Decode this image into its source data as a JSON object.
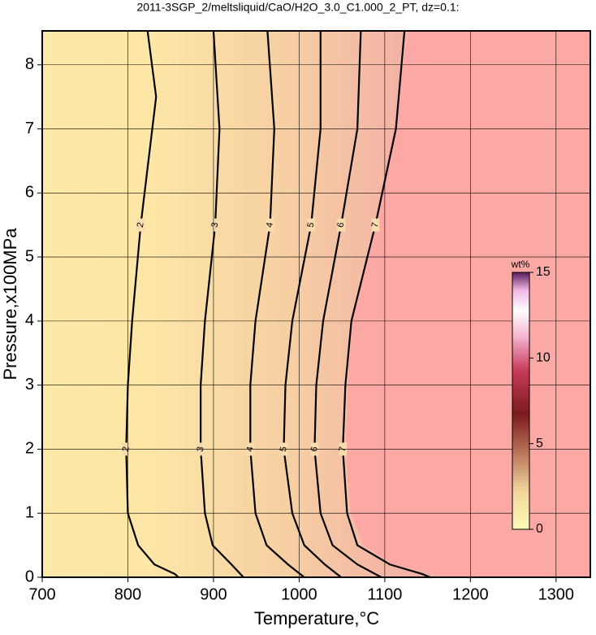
{
  "chart_data": {
    "type": "contour",
    "title": "2011-3SGP_2/meltsliquid/CaO/H2O_3.0_C1.000_2_PT, dz=0.1:",
    "x_label": "Temperature,°C",
    "y_label": "Pressure,x100MPa",
    "xlim": [
      700,
      1340
    ],
    "ylim": [
      0,
      8.53
    ],
    "xticks": [
      700,
      800,
      900,
      1000,
      1100,
      1200,
      1300
    ],
    "yticks": [
      0,
      1,
      2,
      3,
      4,
      5,
      6,
      7,
      8
    ],
    "grid": true,
    "line_color": "#000000",
    "region": {
      "color": "#fca9a6",
      "x": [
        1128,
        1110,
        1088,
        1062,
        1058,
        1057,
        1054,
        1060,
        1075,
        1110,
        1160,
        1165
      ],
      "y": [
        8.53,
        7,
        5.5,
        4,
        3.4,
        3,
        2,
        1,
        0.5,
        0.2,
        0.05,
        0
      ]
    },
    "contours": [
      {
        "level": 2,
        "y": [
          8.53,
          7.5,
          5.5,
          4,
          3,
          2,
          1,
          0.5,
          0.2,
          0.05,
          0
        ],
        "x": [
          823,
          833,
          815,
          805,
          800,
          798,
          800,
          812,
          831,
          855,
          859
        ]
      },
      {
        "level": 3,
        "y": [
          8.53,
          7,
          5.5,
          4,
          3,
          2,
          1,
          0.5,
          0.2,
          0
        ],
        "x": [
          900,
          907,
          902,
          890,
          885,
          885,
          890,
          899,
          921,
          935
        ]
      },
      {
        "level": 4,
        "y": [
          8.53,
          7,
          5.5,
          4,
          3,
          2,
          1,
          0.5,
          0.2,
          0
        ],
        "x": [
          963,
          971,
          966,
          949,
          943,
          943,
          949,
          962,
          987,
          1006
        ]
      },
      {
        "level": 5,
        "y": [
          8.53,
          7,
          5.5,
          4,
          3,
          2,
          1,
          0.5,
          0.2,
          0
        ],
        "x": [
          1025,
          1025,
          1014,
          992,
          984,
          982,
          992,
          1006,
          1030,
          1049
        ]
      },
      {
        "level": 6,
        "y": [
          8.53,
          7,
          5.5,
          4,
          3,
          2,
          1,
          0.5,
          0.2,
          0
        ],
        "x": [
          1072,
          1068,
          1049,
          1028,
          1020,
          1018,
          1025,
          1039,
          1068,
          1096
        ]
      },
      {
        "level": 7,
        "y": [
          8.53,
          7,
          5.5,
          4,
          3,
          2,
          1,
          0.5,
          0.2,
          0.05,
          0
        ],
        "x": [
          1123,
          1113,
          1089,
          1061,
          1054,
          1051,
          1056,
          1068,
          1106,
          1144,
          1153
        ]
      }
    ],
    "colorbar": {
      "label": "wt%",
      "lim": [
        0,
        15
      ],
      "ticks": [
        0,
        5,
        10,
        15
      ]
    }
  }
}
